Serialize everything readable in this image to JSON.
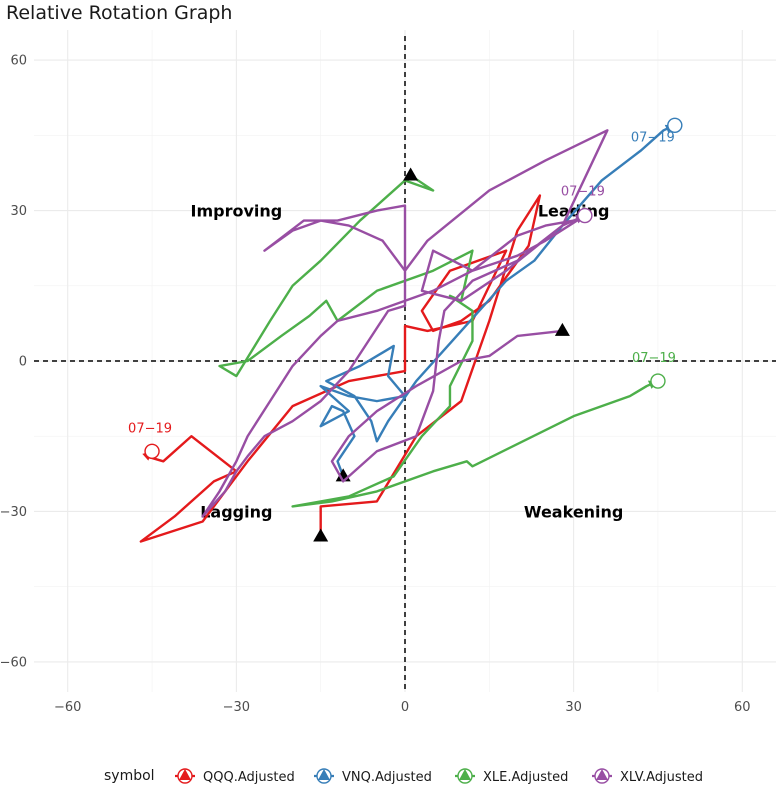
{
  "chart_data": {
    "type": "line",
    "title": "Relative Rotation Graph",
    "xlabel": "",
    "ylabel": "",
    "xlim": [
      -66,
      66
    ],
    "ylim": [
      -66,
      66
    ],
    "xticks": [
      -60,
      -30,
      0,
      30,
      60
    ],
    "yticks": [
      -60,
      -30,
      0,
      30,
      60
    ],
    "grid": true,
    "reference_lines": {
      "x": 0,
      "y": 0
    },
    "quadrants": [
      {
        "label": "Improving",
        "x": -30,
        "y": 30
      },
      {
        "label": "Leading",
        "x": 30,
        "y": 30
      },
      {
        "label": "Lagging",
        "x": -30,
        "y": -30
      },
      {
        "label": "Weakening",
        "x": 30,
        "y": -30
      }
    ],
    "legend": {
      "title": "symbol",
      "position": "bottom"
    },
    "series": [
      {
        "name": "QQQ.Adjusted",
        "color": "#E41A1C",
        "end_label": "07−19",
        "points": [
          [
            -15,
            -35
          ],
          [
            -15,
            -29
          ],
          [
            -5,
            -28
          ],
          [
            2,
            -15
          ],
          [
            10,
            -8
          ],
          [
            15,
            8
          ],
          [
            20,
            26
          ],
          [
            24,
            33
          ],
          [
            22,
            23
          ],
          [
            15,
            12
          ],
          [
            10,
            8
          ],
          [
            5,
            6
          ],
          [
            3,
            10
          ],
          [
            8,
            18
          ],
          [
            18,
            22
          ],
          [
            12,
            8
          ],
          [
            4,
            6
          ],
          [
            0,
            7
          ],
          [
            0,
            -2
          ],
          [
            -10,
            -4
          ],
          [
            -20,
            -9
          ],
          [
            -28,
            -20
          ],
          [
            -36,
            -32
          ],
          [
            -47,
            -36
          ],
          [
            -41,
            -31
          ],
          [
            -34,
            -24
          ],
          [
            -30,
            -22
          ],
          [
            -38,
            -15
          ],
          [
            -43,
            -20
          ],
          [
            -46,
            -19
          ],
          [
            -45,
            -18
          ]
        ]
      },
      {
        "name": "VNQ.Adjusted",
        "color": "#377EB8",
        "end_label": "07−19",
        "points": [
          [
            -11,
            -23
          ],
          [
            -12,
            -20
          ],
          [
            -9,
            -15
          ],
          [
            -11,
            -10
          ],
          [
            -13,
            -9
          ],
          [
            -15,
            -13
          ],
          [
            -10,
            -10
          ],
          [
            -12,
            -8
          ],
          [
            -15,
            -5
          ],
          [
            -10,
            -7
          ],
          [
            -5,
            -8
          ],
          [
            0,
            -7
          ],
          [
            -3,
            -3
          ],
          [
            -2,
            3
          ],
          [
            -8,
            -1
          ],
          [
            -14,
            -4
          ],
          [
            -9,
            -7
          ],
          [
            -6,
            -12
          ],
          [
            -5,
            -16
          ],
          [
            -3,
            -12
          ],
          [
            2,
            -4
          ],
          [
            10,
            6
          ],
          [
            18,
            16
          ],
          [
            23,
            20
          ],
          [
            28,
            27
          ],
          [
            35,
            36
          ],
          [
            42,
            42
          ],
          [
            46,
            46
          ],
          [
            48,
            47
          ]
        ]
      },
      {
        "name": "XLE.Adjusted",
        "color": "#4DAF4A",
        "end_label": "07−19",
        "points": [
          [
            1,
            37
          ],
          [
            5,
            34
          ],
          [
            0,
            36
          ],
          [
            -8,
            28
          ],
          [
            -15,
            20
          ],
          [
            -20,
            15
          ],
          [
            -24,
            8
          ],
          [
            -30,
            -3
          ],
          [
            -33,
            -1
          ],
          [
            -28,
            0
          ],
          [
            -22,
            5
          ],
          [
            -17,
            9
          ],
          [
            -14,
            12
          ],
          [
            -12,
            8
          ],
          [
            -5,
            14
          ],
          [
            5,
            18
          ],
          [
            12,
            22
          ],
          [
            10,
            12
          ],
          [
            8,
            13
          ],
          [
            12,
            10
          ],
          [
            12,
            4
          ],
          [
            8,
            -5
          ],
          [
            8,
            -9
          ],
          [
            3,
            -15
          ],
          [
            -2,
            -23
          ],
          [
            -10,
            -27
          ],
          [
            -15,
            -28
          ],
          [
            -20,
            -29
          ],
          [
            -13,
            -28
          ],
          [
            -5,
            -26
          ],
          [
            5,
            -22
          ],
          [
            11,
            -20
          ],
          [
            12,
            -21
          ],
          [
            30,
            -11
          ],
          [
            40,
            -7
          ],
          [
            43,
            -5
          ],
          [
            45,
            -4
          ]
        ]
      },
      {
        "name": "XLV.Adjusted",
        "color": "#984EA3",
        "end_label": "07−19",
        "points": [
          [
            28,
            6
          ],
          [
            20,
            5
          ],
          [
            15,
            1
          ],
          [
            10,
            0
          ],
          [
            2,
            -5
          ],
          [
            -5,
            -10
          ],
          [
            -10,
            -15
          ],
          [
            -13,
            -20
          ],
          [
            -11,
            -24
          ],
          [
            -5,
            -18
          ],
          [
            2,
            -15
          ],
          [
            5,
            -6
          ],
          [
            6,
            4
          ],
          [
            7,
            10
          ],
          [
            12,
            16
          ],
          [
            20,
            20
          ],
          [
            28,
            27
          ],
          [
            32,
            29
          ],
          [
            25,
            24
          ],
          [
            20,
            21
          ],
          [
            12,
            18
          ],
          [
            5,
            22
          ],
          [
            3,
            14
          ],
          [
            10,
            12
          ],
          [
            18,
            18
          ],
          [
            28,
            27
          ],
          [
            36,
            46
          ],
          [
            25,
            40
          ],
          [
            15,
            34
          ],
          [
            4,
            24
          ],
          [
            0,
            18
          ],
          [
            -4,
            24
          ],
          [
            -10,
            27
          ],
          [
            -15,
            28
          ],
          [
            -20,
            26
          ],
          [
            -25,
            22
          ],
          [
            -18,
            28
          ],
          [
            -12,
            28
          ],
          [
            -5,
            30
          ],
          [
            0,
            31
          ],
          [
            0,
            11
          ],
          [
            -3,
            10
          ],
          [
            -10,
            -2
          ],
          [
            -15,
            -8
          ],
          [
            -20,
            -12
          ],
          [
            -25,
            -15
          ],
          [
            -28,
            -19
          ],
          [
            -30,
            -22
          ],
          [
            -32,
            -26
          ],
          [
            -36,
            -31
          ],
          [
            -33,
            -26
          ],
          [
            -30,
            -20
          ],
          [
            -28,
            -15
          ],
          [
            -24,
            -8
          ],
          [
            -20,
            -1
          ],
          [
            -15,
            5
          ],
          [
            -12,
            8
          ],
          [
            -5,
            10
          ],
          [
            5,
            14
          ],
          [
            12,
            18
          ],
          [
            20,
            25
          ],
          [
            25,
            27
          ],
          [
            30,
            28
          ],
          [
            32,
            29
          ]
        ]
      }
    ]
  }
}
